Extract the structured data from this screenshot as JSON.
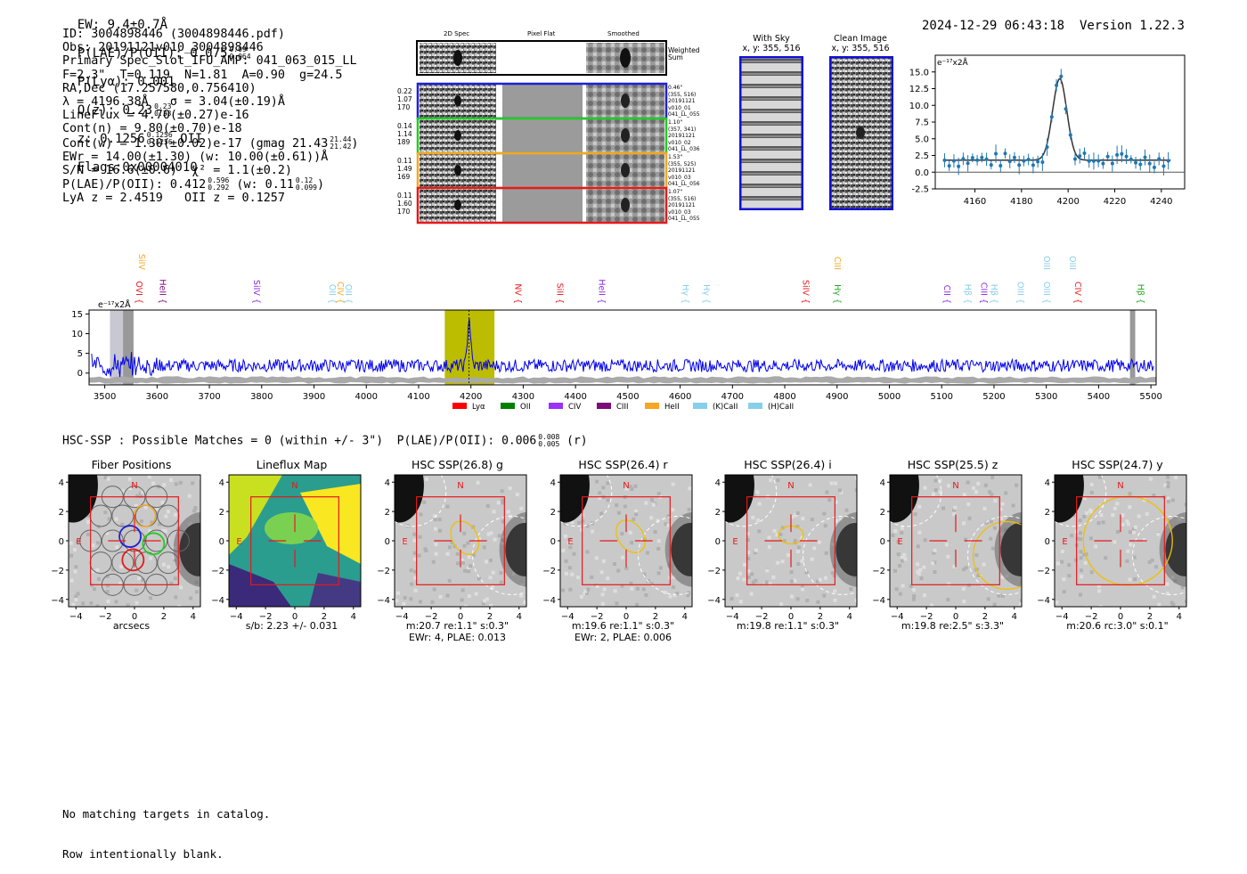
{
  "header": {
    "ew_label": "EW: ",
    "ew_value": "9.4±0.7Å",
    "plae_label": "P(LAE)/P(OII): ",
    "plae_value": "0.075",
    "plae_sup": "0.09",
    "plae_sub": "0.064",
    "plya_label": "P(Lyα): ",
    "plya_value": "0.001",
    "qz_label": "Q(z): ",
    "qz_value": "0.23",
    "qz_sup": "0.23",
    "qz_sub": "0.23",
    "z_label": "z: ",
    "z_value": "0.1256",
    "z_sup": "0.1256",
    "z_sub": "0.1256",
    "z_line": "OII",
    "flags": "Flags:0x00004010",
    "timestamp": "2024-12-29 06:43:18",
    "version": "Version 1.22.3"
  },
  "info": {
    "id": "ID: 3004898446 (3004898446.pdf)",
    "obs": "Obs: 20191121v010_3004898446",
    "primary": "Primary Spec_Slot_IFU_AMP: 041_063_015_LL",
    "fiber": "F=2.3\"  T=0.119  N=1.81  A=0.90  g=24.5",
    "radec": "RA,Dec (17.257580,0.756410)",
    "lambda": "λ = 4196.38Å   σ = 3.04(±0.19)Å",
    "lineflux": "LineFlux = 4.70(±0.27)e-16",
    "contn": "Cont(n) = 9.80(±0.70)e-18",
    "contw": "Cont(w) = 1.30(±0.02)e-17 (gmag 21.43",
    "contw_sup": "21.44",
    "contw_sub": "21.42",
    "ewr": "EWr = 14.00(±1.30) (w: 10.00(±0.61))Å",
    "sn": "S/N = 16.6(±0.6)  χ² = 1.1(±0.2)",
    "plae": "P(LAE)/P(OII): 0.412",
    "plae_sup": "0.596",
    "plae_sub": "0.292",
    "plae_w": "(w: 0.11",
    "plae_w_sup": "0.12",
    "plae_w_sub": "0.099",
    "lya": "LyA z = 2.4519   OII z = 0.1257"
  },
  "cutouts": {
    "col_2d": "2D Spec",
    "col_flat": "Pixel Flat",
    "col_smooth": "Smoothed",
    "weighted": "Weighted\nSum",
    "rows": [
      {
        "left": [
          "0.22",
          "1.07",
          "170"
        ],
        "right": [
          "0.46\"",
          "(355, 516)",
          "20191121",
          "v010_01",
          "041_LL_055"
        ],
        "color": "#1f1fd6"
      },
      {
        "left": [
          "0.14",
          "1.14",
          "189"
        ],
        "right": [
          "1.10\"",
          "(357, 341)",
          "20191121",
          "v010_02",
          "041_LL_036"
        ],
        "color": "#22cc22"
      },
      {
        "left": [
          "0.11",
          "1.49",
          "169"
        ],
        "right": [
          "1.53\"",
          "(355, 525)",
          "20191121",
          "v010_03",
          "041_LL_056"
        ],
        "color": "#f5a623"
      },
      {
        "left": [
          "0.11",
          "1.60",
          "170"
        ],
        "right": [
          "1.07\"",
          "(355, 516)",
          "20191121",
          "v010_03",
          "041_LL_055"
        ],
        "color": "#e41a1c"
      }
    ]
  },
  "sky": {
    "with_sky": "With Sky",
    "with_sky_xy": "x, y: 355, 516",
    "clean": "Clean Image",
    "clean_xy": "x, y: 355, 516"
  },
  "zoom_chart": {
    "unit_label": "e⁻¹⁷x2Å",
    "xlim": [
      4143,
      4250
    ],
    "ylim": [
      -2.5,
      17.5
    ],
    "xticks": [
      4160,
      4180,
      4200,
      4220,
      4240
    ],
    "yticks": [
      -2.5,
      0.0,
      2.5,
      5.0,
      7.5,
      10.0,
      12.5,
      15.0
    ],
    "data_color": "#1f77b4"
  },
  "chart_data": {
    "type": "line",
    "title": "",
    "ylabel": "e⁻¹⁷x2Å",
    "xlim": [
      3470,
      5510
    ],
    "ylim": [
      -3,
      16
    ],
    "xticks": [
      3500,
      3600,
      3700,
      3800,
      3900,
      4000,
      4100,
      4200,
      4300,
      4400,
      4500,
      4600,
      4700,
      4800,
      4900,
      5000,
      5100,
      5200,
      5300,
      5400,
      5500
    ],
    "yticks": [
      0,
      5,
      10,
      15
    ],
    "highlight_range": [
      4150,
      4245
    ],
    "line_center": 4196.4,
    "lines": [
      {
        "x": 3560,
        "label": "SiIV",
        "color": "#f5a623",
        "row": 0
      },
      {
        "x": 3555,
        "label": "OVI",
        "color": "#e41a1c",
        "row": 1
      },
      {
        "x": 3600,
        "label": "HeII",
        "color": "#7b0d7b",
        "row": 1
      },
      {
        "x": 3780,
        "label": "SiIV",
        "color": "#8a2be2",
        "row": 1
      },
      {
        "x": 3925,
        "label": "OII",
        "color": "#87ceeb",
        "row": 1
      },
      {
        "x": 3940,
        "label": "CIV",
        "color": "#f5a623",
        "row": 1
      },
      {
        "x": 3955,
        "label": "OII",
        "color": "#87ceeb",
        "row": 1
      },
      {
        "x": 4280,
        "label": "NV",
        "color": "#e41a1c",
        "row": 1
      },
      {
        "x": 4360,
        "label": "SiII",
        "color": "#e41a1c",
        "row": 1
      },
      {
        "x": 4440,
        "label": "HeII",
        "color": "#8a2be2",
        "row": 1
      },
      {
        "x": 4600,
        "label": "Hγ",
        "color": "#87ceeb",
        "row": 1
      },
      {
        "x": 4640,
        "label": "Hγ",
        "color": "#87ceeb",
        "row": 1
      },
      {
        "x": 4830,
        "label": "SiIV",
        "color": "#e41a1c",
        "row": 1
      },
      {
        "x": 4890,
        "label": "CIII",
        "color": "#f5a623",
        "row": 0
      },
      {
        "x": 4890,
        "label": "Hγ",
        "color": "#22aa22",
        "row": 1
      },
      {
        "x": 5100,
        "label": "CII",
        "color": "#8a2be2",
        "row": 1
      },
      {
        "x": 5140,
        "label": "Hβ",
        "color": "#87ceeb",
        "row": 1
      },
      {
        "x": 5170,
        "label": "CIII",
        "color": "#8a2be2",
        "row": 1
      },
      {
        "x": 5190,
        "label": "Hβ",
        "color": "#87ceeb",
        "row": 1
      },
      {
        "x": 5240,
        "label": "OIII",
        "color": "#87ceeb",
        "row": 1
      },
      {
        "x": 5290,
        "label": "OIII",
        "color": "#87ceeb",
        "row": 0
      },
      {
        "x": 5290,
        "label": "OIII",
        "color": "#87ceeb",
        "row": 1
      },
      {
        "x": 5340,
        "label": "OIII",
        "color": "#87ceeb",
        "row": 0
      },
      {
        "x": 5350,
        "label": "CIV",
        "color": "#e41a1c",
        "row": 1
      },
      {
        "x": 5470,
        "label": "Hβ",
        "color": "#22aa22",
        "row": 1
      }
    ],
    "legend": [
      {
        "label": "Lyα",
        "color": "#ff0000"
      },
      {
        "label": "OII",
        "color": "#008000"
      },
      {
        "label": "CIV",
        "color": "#9b30ff"
      },
      {
        "label": "CIII",
        "color": "#7b0d7b"
      },
      {
        "label": "HeII",
        "color": "#f5a623"
      },
      {
        "label": "(K)CaII",
        "color": "#87ceeb"
      },
      {
        "label": "(H)CaII",
        "color": "#87ceeb"
      }
    ]
  },
  "hsc_title": "HSC-SSP : Possible Matches = 0 (within +/- 3\")  P(LAE)/P(OII): 0.006",
  "hsc_title_sup": "0.008",
  "hsc_title_sub": "0.005",
  "hsc_title_band": "(r)",
  "panels": [
    {
      "title": "Fiber Positions",
      "caption1": "arcsecs",
      "caption2": ""
    },
    {
      "title": "Lineflux Map",
      "caption1": "s/b: 2.23 +/- 0.031",
      "caption2": ""
    },
    {
      "title": "HSC SSP(26.8) g",
      "caption1": "m:20.7  re:1.1\"  s:0.3\"",
      "caption2": "EWr: 4, PLAE: 0.013"
    },
    {
      "title": "HSC SSP(26.4) r",
      "caption1": "m:19.6  re:1.1\"  s:0.3\"",
      "caption2": "EWr: 2, PLAE: 0.006"
    },
    {
      "title": "HSC SSP(26.4) i",
      "caption1": "m:19.8  re:1.1\"  s:0.3\"",
      "caption2": ""
    },
    {
      "title": "HSC SSP(25.5) z",
      "caption1": "m:19.8  re:2.5\"  s:3.3\"",
      "caption2": ""
    },
    {
      "title": "HSC SSP(24.7) y",
      "caption1": "m:20.6  rc:3.0\"  s:0.1\"",
      "caption2": ""
    }
  ],
  "panel_axis": {
    "ticks": [
      -4,
      -2,
      0,
      2,
      4
    ],
    "north": "N",
    "east": "E"
  },
  "footer": {
    "line1": "No matching targets in catalog.",
    "line2": "Row intentionally blank."
  }
}
